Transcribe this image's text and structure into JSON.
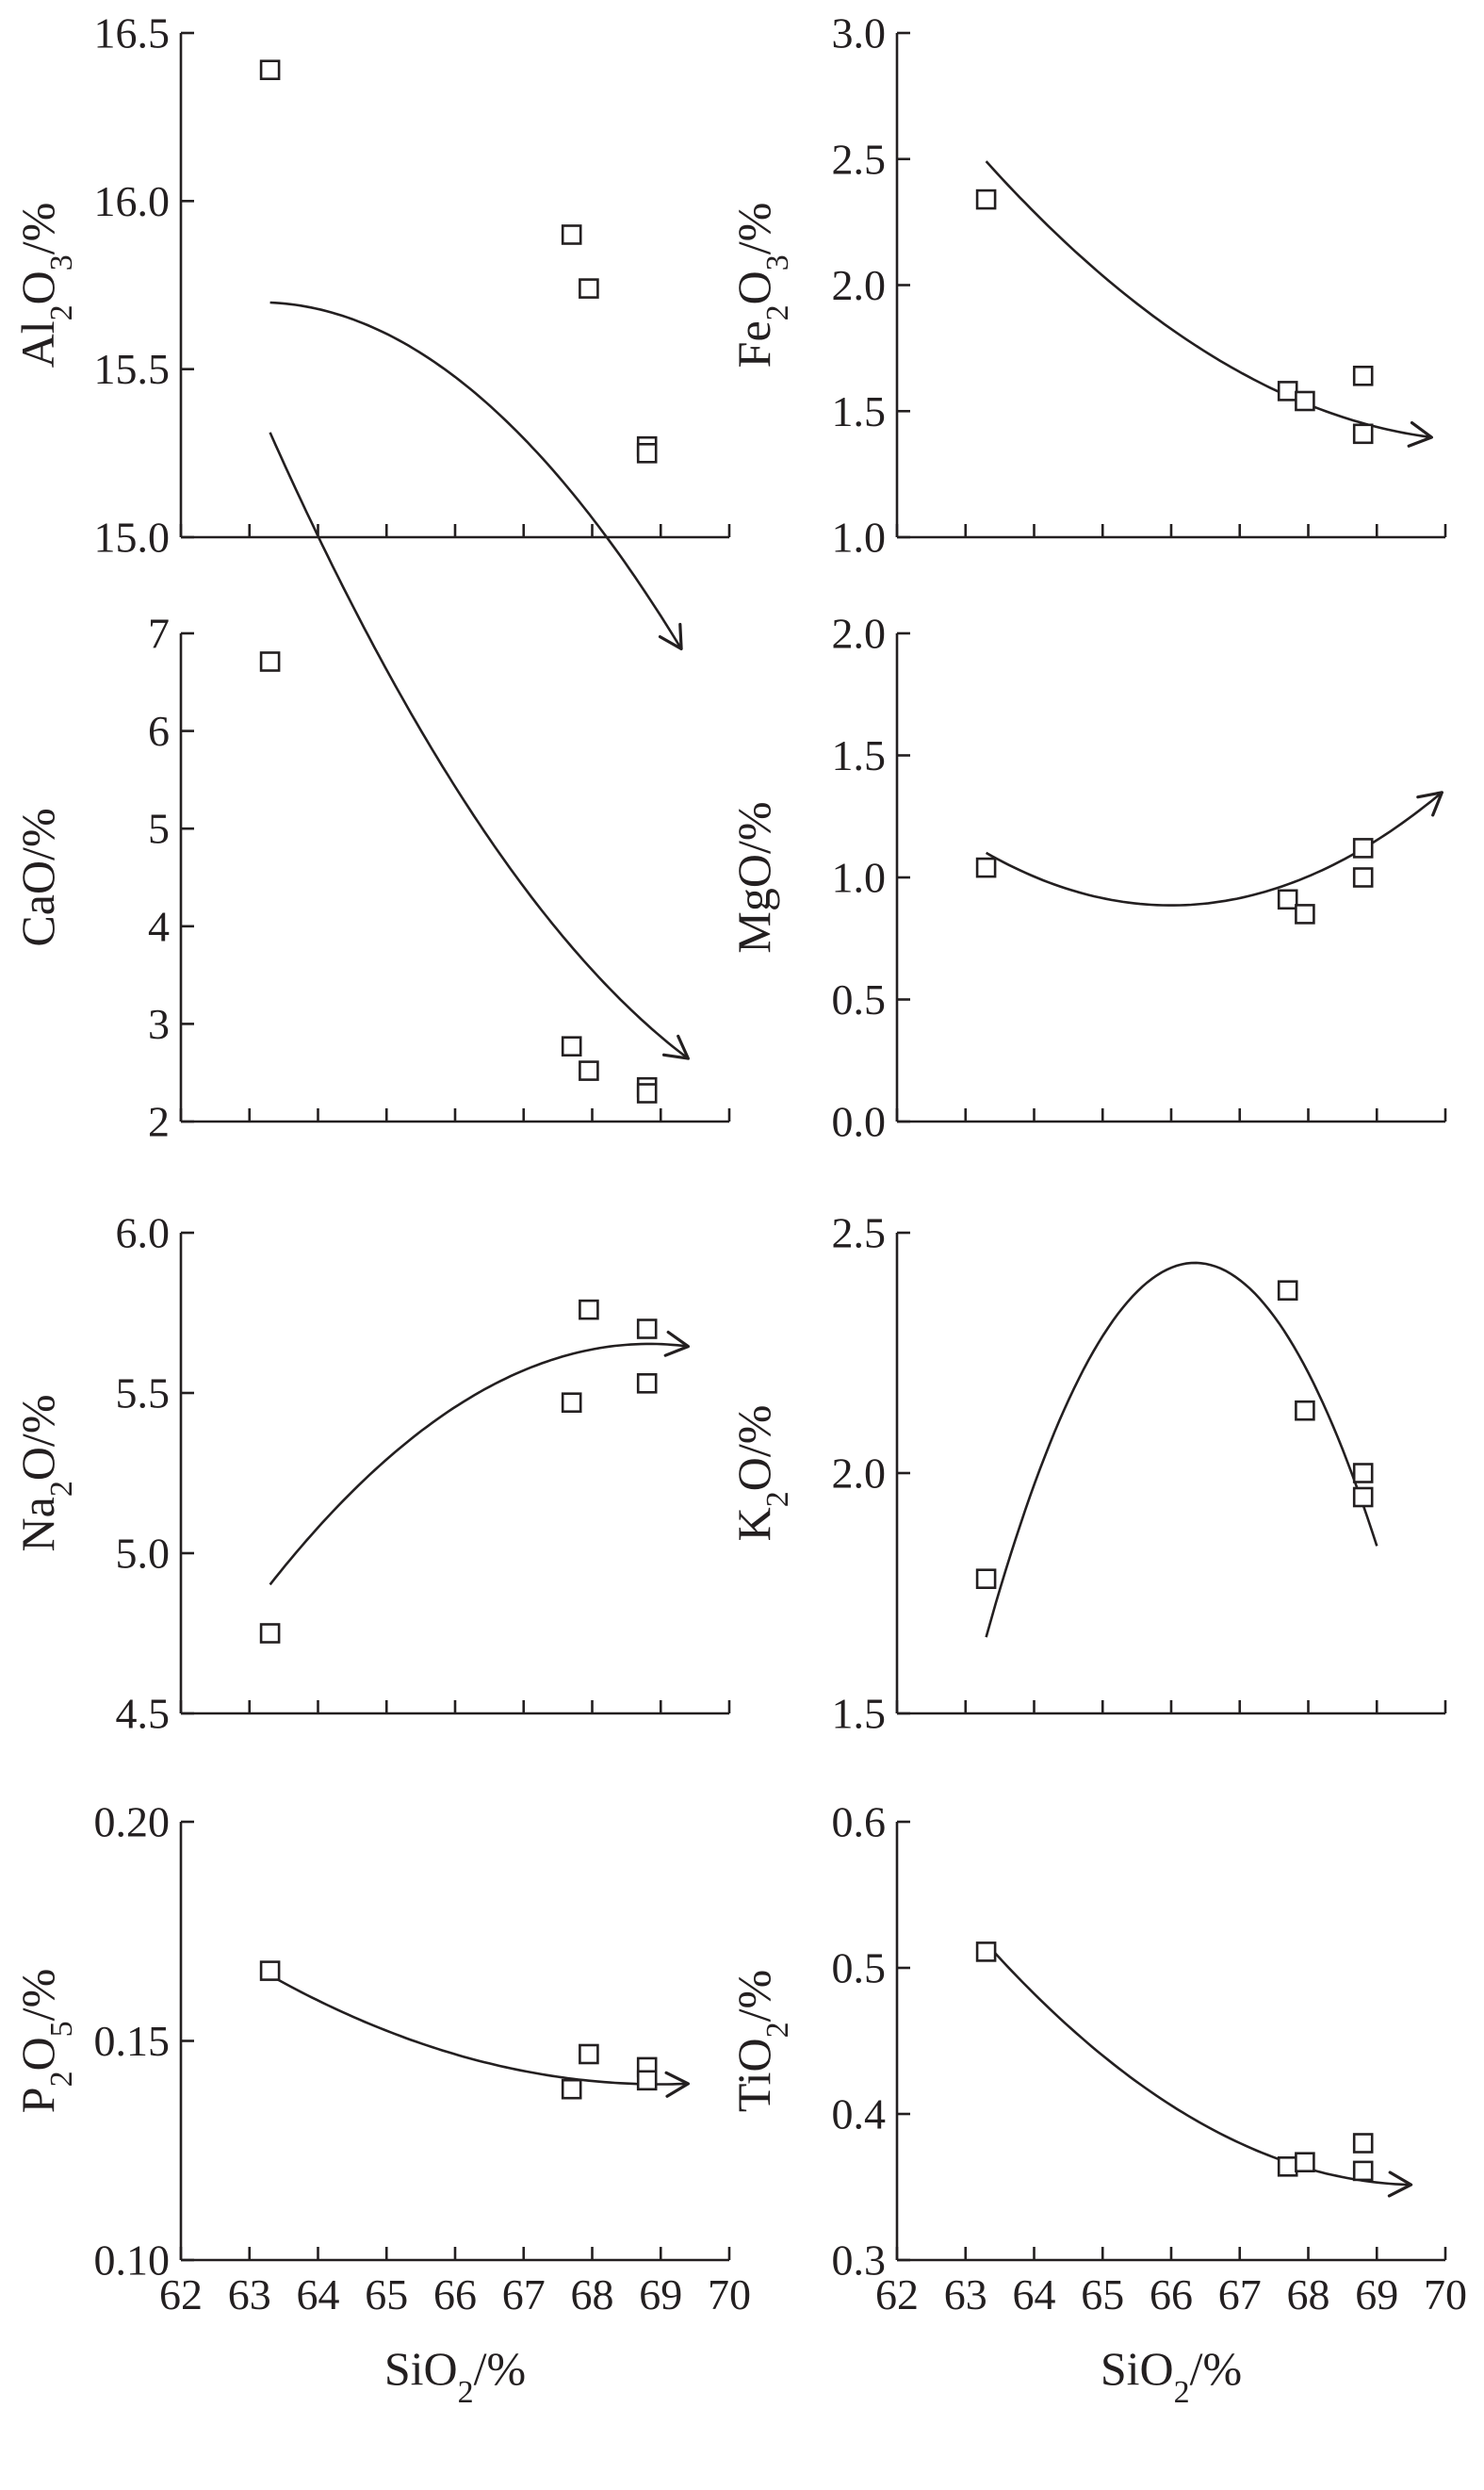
{
  "chart_data": [
    {
      "type": "scatter",
      "ylabel_parts": [
        {
          "t": "Al"
        },
        {
          "t": "2",
          "sub": true
        },
        {
          "t": "O"
        },
        {
          "t": "3",
          "sub": true
        },
        {
          "t": "/%"
        }
      ],
      "xlim": [
        62,
        70
      ],
      "ylim": [
        15.0,
        16.5
      ],
      "yticks": [
        15.0,
        15.5,
        16.0,
        16.5
      ],
      "ytick_labels": [
        "15.0",
        "15.5",
        "16.0",
        "16.5"
      ],
      "points": [
        {
          "x": 63.3,
          "y": 16.39
        },
        {
          "x": 67.7,
          "y": 15.9
        },
        {
          "x": 67.95,
          "y": 15.74
        },
        {
          "x": 68.8,
          "y": 15.27
        },
        {
          "x": 68.8,
          "y": 15.25
        }
      ],
      "trend": {
        "coef": [
          -0.0272,
          3.435,
          -92.75
        ],
        "x_range": [
          63.3,
          69.3
        ],
        "arrow": true
      }
    },
    {
      "type": "scatter",
      "ylabel_parts": [
        {
          "t": "Fe"
        },
        {
          "t": "2",
          "sub": true
        },
        {
          "t": "O"
        },
        {
          "t": "3",
          "sub": true
        },
        {
          "t": "/%"
        }
      ],
      "xlim": [
        62,
        70
      ],
      "ylim": [
        1.0,
        3.0
      ],
      "yticks": [
        1.0,
        1.5,
        2.0,
        2.5,
        3.0
      ],
      "ytick_labels": [
        "1.0",
        "1.5",
        "2.0",
        "2.5",
        "3.0"
      ],
      "points": [
        {
          "x": 63.3,
          "y": 2.34
        },
        {
          "x": 67.7,
          "y": 1.58
        },
        {
          "x": 67.95,
          "y": 1.54
        },
        {
          "x": 68.8,
          "y": 1.64
        },
        {
          "x": 68.8,
          "y": 1.41
        }
      ],
      "trend": {
        "coef": [
          0.0205,
          -2.897,
          103.73
        ],
        "x_range": [
          63.3,
          69.8
        ],
        "arrow": true
      }
    },
    {
      "type": "scatter",
      "ylabel_parts": [
        {
          "t": "CaO/%"
        }
      ],
      "xlim": [
        62,
        70
      ],
      "ylim": [
        2,
        7
      ],
      "yticks": [
        2,
        3,
        4,
        5,
        6,
        7
      ],
      "ytick_labels": [
        "2",
        "3",
        "4",
        "5",
        "6",
        "7"
      ],
      "points": [
        {
          "x": 63.3,
          "y": 6.71
        },
        {
          "x": 67.7,
          "y": 2.77
        },
        {
          "x": 67.95,
          "y": 2.52
        },
        {
          "x": 68.8,
          "y": 2.35
        },
        {
          "x": 68.8,
          "y": 2.29
        }
      ],
      "trend": {
        "coef": [
          0.0859,
          -12.45,
          452.95
        ],
        "x_range": [
          63.3,
          69.4
        ],
        "arrow": true
      }
    },
    {
      "type": "scatter",
      "ylabel_parts": [
        {
          "t": "MgO/%"
        }
      ],
      "xlim": [
        62,
        70
      ],
      "ylim": [
        0.0,
        2.0
      ],
      "yticks": [
        0.0,
        0.5,
        1.0,
        1.5,
        2.0
      ],
      "ytick_labels": [
        "0.0",
        "0.5",
        "1.0",
        "1.5",
        "2.0"
      ],
      "points": [
        {
          "x": 63.3,
          "y": 1.04
        },
        {
          "x": 67.7,
          "y": 0.91
        },
        {
          "x": 67.95,
          "y": 0.85
        },
        {
          "x": 68.8,
          "y": 1.12
        },
        {
          "x": 68.8,
          "y": 1.0
        }
      ],
      "trend": {
        "coef": [
          0.0296,
          -3.907,
          129.81
        ],
        "x_range": [
          63.3,
          69.95
        ],
        "arrow": true
      }
    },
    {
      "type": "scatter",
      "ylabel_parts": [
        {
          "t": "Na"
        },
        {
          "t": "2",
          "sub": true
        },
        {
          "t": "O/%"
        }
      ],
      "xlim": [
        62,
        70
      ],
      "ylim": [
        4.5,
        6.0
      ],
      "yticks": [
        4.5,
        5.0,
        5.5,
        6.0
      ],
      "ytick_labels": [
        "4.5",
        "5.0",
        "5.5",
        "6.0"
      ],
      "points": [
        {
          "x": 63.3,
          "y": 4.75
        },
        {
          "x": 67.7,
          "y": 5.47
        },
        {
          "x": 67.95,
          "y": 5.76
        },
        {
          "x": 68.8,
          "y": 5.7
        },
        {
          "x": 68.8,
          "y": 5.53
        }
      ],
      "trend": {
        "coef": [
          -0.0245,
          3.373,
          -110.44
        ],
        "x_range": [
          63.3,
          69.4
        ],
        "arrow": true
      }
    },
    {
      "type": "scatter",
      "ylabel_parts": [
        {
          "t": "K"
        },
        {
          "t": "2",
          "sub": true
        },
        {
          "t": "O/%"
        }
      ],
      "xlim": [
        62,
        70
      ],
      "ylim": [
        1.5,
        2.5
      ],
      "yticks": [
        1.5,
        2.0,
        2.5
      ],
      "ytick_labels": [
        "1.5",
        "2.0",
        "2.5"
      ],
      "points": [
        {
          "x": 63.3,
          "y": 1.78
        },
        {
          "x": 67.7,
          "y": 2.38
        },
        {
          "x": 67.95,
          "y": 2.13
        },
        {
          "x": 68.8,
          "y": 2.0
        },
        {
          "x": 68.8,
          "y": 1.95
        }
      ],
      "trend": {
        "coef": [
          -0.0838,
          11.12,
          -366.46
        ],
        "x_range": [
          63.3,
          69.0
        ],
        "arrow": false
      }
    },
    {
      "type": "scatter",
      "ylabel_parts": [
        {
          "t": "P"
        },
        {
          "t": "2",
          "sub": true
        },
        {
          "t": "O"
        },
        {
          "t": "5",
          "sub": true
        },
        {
          "t": "/%"
        }
      ],
      "xlim": [
        62,
        70
      ],
      "ylim": [
        0.1,
        0.2
      ],
      "yticks": [
        0.1,
        0.15,
        0.2
      ],
      "ytick_labels": [
        "0.10",
        "0.15",
        "0.20"
      ],
      "points": [
        {
          "x": 63.3,
          "y": 0.166
        },
        {
          "x": 67.7,
          "y": 0.139
        },
        {
          "x": 67.95,
          "y": 0.147
        },
        {
          "x": 68.8,
          "y": 0.144
        },
        {
          "x": 68.8,
          "y": 0.141
        }
      ],
      "trend": {
        "coef": [
          0.000769,
          -0.1061,
          3.7998
        ],
        "x_range": [
          63.3,
          69.4
        ],
        "arrow": true
      }
    },
    {
      "type": "scatter",
      "ylabel_parts": [
        {
          "t": "TiO"
        },
        {
          "t": "2",
          "sub": true
        },
        {
          "t": "/%"
        }
      ],
      "xlim": [
        62,
        70
      ],
      "ylim": [
        0.3,
        0.6
      ],
      "yticks": [
        0.3,
        0.4,
        0.5,
        0.6
      ],
      "ytick_labels": [
        "0.3",
        "0.4",
        "0.5",
        "0.6"
      ],
      "points": [
        {
          "x": 63.3,
          "y": 0.511
        },
        {
          "x": 67.7,
          "y": 0.364
        },
        {
          "x": 67.95,
          "y": 0.367
        },
        {
          "x": 68.8,
          "y": 0.38
        },
        {
          "x": 68.8,
          "y": 0.361
        }
      ],
      "trend": {
        "coef": [
          0.00412,
          -0.5738,
          20.33
        ],
        "x_range": [
          63.3,
          69.5
        ],
        "arrow": true
      }
    }
  ],
  "x_axis": {
    "ticks": [
      62,
      63,
      64,
      65,
      66,
      67,
      68,
      69,
      70
    ],
    "tick_labels": [
      "62",
      "63",
      "64",
      "65",
      "66",
      "67",
      "68",
      "69",
      "70"
    ],
    "label_parts": [
      {
        "t": "SiO"
      },
      {
        "t": "2",
        "sub": true
      },
      {
        "t": "/%"
      }
    ]
  }
}
